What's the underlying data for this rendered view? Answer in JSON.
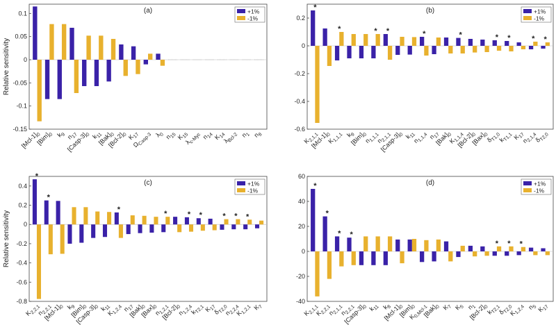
{
  "figure": {
    "ylabel": "Relative sensitivity",
    "colors": {
      "plus": "#3a22a8",
      "minus": "#e8b12e"
    },
    "legend": {
      "plus": "+1%",
      "minus": "-1%"
    }
  },
  "chart_data": [
    {
      "type": "bar",
      "panel": "(a)",
      "ylabel": "Relative sensitivity",
      "legend": "top-right",
      "ylim": [
        -0.15,
        0.12
      ],
      "yticks": [
        -0.15,
        -0.1,
        -0.05,
        0,
        0.05,
        0.1
      ],
      "ytick_labels": [
        "-0.15",
        "-0.1",
        "-0.05",
        "0",
        "0.05",
        "0.1"
      ],
      "categories": [
        "[Mcl-1]0",
        "[Bim]0",
        "k9",
        "n17",
        "[Casp-3]0",
        "k11",
        "[Bak]0",
        "[Bcl-2]0",
        "K17",
        "ΩCasp-3",
        "λ0",
        "n15",
        "K15",
        "λc-Myc",
        "n14",
        "K14",
        "λBcl-2",
        "n1",
        "n8"
      ],
      "series": [
        {
          "name": "+1%",
          "values": [
            0.115,
            -0.085,
            -0.085,
            0.069,
            -0.057,
            -0.057,
            -0.047,
            0.033,
            0.029,
            -0.01,
            0.013,
            0,
            0,
            0,
            0,
            0,
            0,
            0,
            0
          ]
        },
        {
          "name": "-1%",
          "values": [
            -0.133,
            0.077,
            0.077,
            -0.072,
            0.052,
            0.052,
            0.045,
            -0.035,
            -0.031,
            0.013,
            -0.013,
            0,
            0,
            0,
            0,
            0,
            0,
            0,
            0
          ]
        }
      ],
      "stars": []
    },
    {
      "type": "bar",
      "panel": "(b)",
      "ylabel": "",
      "legend": "top-right",
      "ylim": [
        -0.6,
        0.3
      ],
      "yticks": [
        -0.6,
        -0.4,
        -0.2,
        0,
        0.2
      ],
      "ytick_labels": [
        "-0.6",
        "-0.4",
        "-0.2",
        "0",
        "0.2"
      ],
      "categories": [
        "K2,1,1",
        "[Mcl-1]0",
        "K1,1,1",
        "k9",
        "[Bim]0",
        "n1,1,1",
        "n2,1,1",
        "[Casp-3]0",
        "k11",
        "n1,1,4",
        "n17",
        "[Bak]0",
        "K1,1,4",
        "[Bcl-2]0",
        "[Bax]0",
        "δT1,0",
        "kT1,1",
        "K17",
        "n2,1,4",
        "δT2,0"
      ],
      "series": [
        {
          "name": "+1%",
          "values": [
            0.255,
            0.125,
            -0.105,
            -0.09,
            -0.09,
            -0.09,
            0.085,
            -0.065,
            -0.063,
            0.065,
            -0.06,
            0.06,
            0.057,
            0.05,
            0.045,
            0.04,
            0.035,
            0.025,
            -0.025,
            -0.02
          ]
        },
        {
          "name": "-1%",
          "values": [
            -0.555,
            -0.145,
            0.1,
            0.085,
            0.085,
            0.085,
            -0.1,
            0.065,
            0.063,
            -0.07,
            0.06,
            -0.055,
            -0.055,
            -0.048,
            -0.045,
            -0.035,
            -0.04,
            -0.025,
            0.03,
            0.025
          ]
        }
      ],
      "stars": [
        0,
        2,
        5,
        6,
        9,
        12,
        15,
        16,
        18,
        19
      ]
    },
    {
      "type": "bar",
      "panel": "(c)",
      "ylabel": "Relative sensitivity",
      "legend": "top-right",
      "ylim": [
        -0.8,
        0.5
      ],
      "yticks": [
        -0.8,
        -0.6,
        -0.4,
        -0.2,
        0,
        0.2,
        0.4
      ],
      "ytick_labels": [
        "-0.8",
        "-0.6",
        "-0.4",
        "-0.2",
        "0",
        "0.2",
        "0.4"
      ],
      "categories": [
        "K2,2,1",
        "n2,2,1",
        "[Mcl-1]0",
        "k9",
        "[Bim]0",
        "[Casp-3]0",
        "k11",
        "K1,2,4",
        "n17",
        "[Bak]0",
        "[Bax]0",
        "n1,2,1",
        "[Bcl-2]0",
        "n1,2,4",
        "kT2,1",
        "K17",
        "δT2,0",
        "n2,2,4",
        "K1,2,1",
        "K7"
      ],
      "series": [
        {
          "name": "+1%",
          "values": [
            0.47,
            0.25,
            0.245,
            -0.2,
            -0.19,
            -0.14,
            -0.13,
            0.125,
            -0.1,
            -0.09,
            -0.085,
            -0.08,
            0.08,
            0.075,
            0.065,
            0.06,
            -0.055,
            -0.05,
            -0.05,
            -0.04
          ]
        },
        {
          "name": "-1%",
          "values": [
            -0.775,
            -0.31,
            -0.305,
            0.18,
            0.18,
            0.135,
            0.13,
            -0.14,
            0.095,
            0.09,
            0.08,
            0.08,
            -0.08,
            -0.075,
            -0.065,
            -0.06,
            0.055,
            0.055,
            0.05,
            0.04
          ]
        }
      ],
      "stars": [
        0,
        1,
        7,
        11,
        13,
        14,
        16,
        17,
        18
      ]
    },
    {
      "type": "bar",
      "panel": "(d)",
      "ylabel": "",
      "legend": "top-right",
      "ylim": [
        -40,
        60
      ],
      "yticks": [
        -40,
        -20,
        0,
        20,
        40,
        60
      ],
      "ytick_labels": [
        "-40",
        "-20",
        "0",
        "20",
        "40",
        "60"
      ],
      "categories": [
        "K2,1,1",
        "K2,2,1",
        "n2,1,1",
        "n2,2,1",
        "[Casp-3]0",
        "k11",
        "k8",
        "[Mcl-1]0",
        "[Bim]0",
        "K0,Mcl-1",
        "[Bak]0",
        "K7",
        "K5",
        "n1",
        "[Bcl-2]0",
        "kT2,1",
        "δT2,0",
        "K1,2,4",
        "n5",
        "K17"
      ],
      "series": [
        {
          "name": "+1%",
          "values": [
            50,
            28,
            12,
            11,
            -11,
            -11,
            -11,
            9.5,
            9.5,
            -8.5,
            -8,
            8,
            -4.5,
            4.5,
            4,
            -3.5,
            -3.5,
            -3,
            3,
            2.5
          ]
        },
        {
          "name": "-1%",
          "values": [
            -36,
            -22,
            -12,
            -11,
            12,
            12,
            12,
            -9.5,
            10,
            9,
            9.5,
            -8,
            4.5,
            -4,
            -3.5,
            4,
            4,
            3.5,
            -3,
            -3
          ]
        }
      ],
      "stars": [
        0,
        1,
        2,
        3,
        15,
        16,
        17
      ]
    }
  ]
}
